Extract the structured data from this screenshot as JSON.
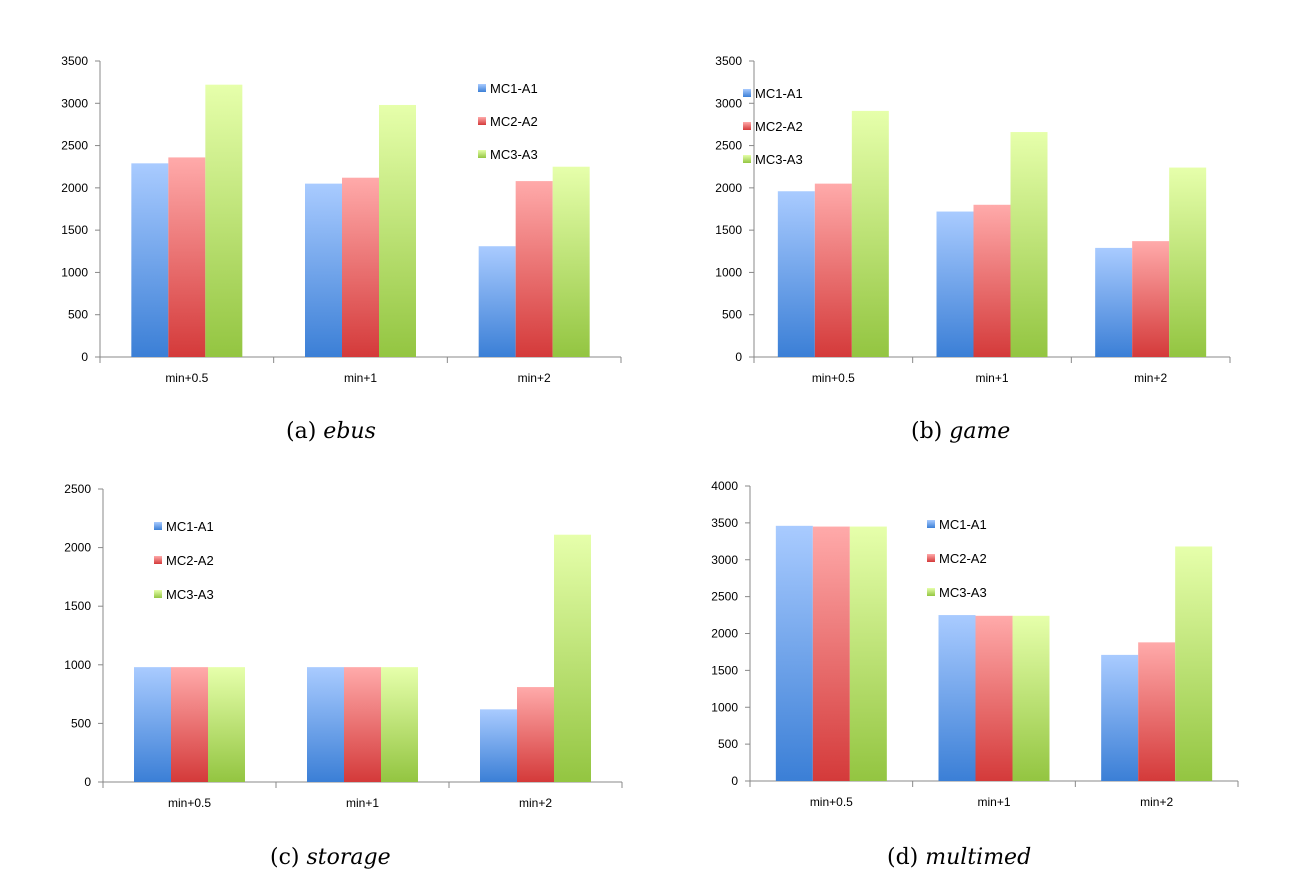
{
  "legend_items": [
    "MC1-A1",
    "MC2-A2",
    "MC3-A3"
  ],
  "colors": {
    "MC1-A1": [
      "#a9cbff",
      "#3b7fd6"
    ],
    "MC2-A2": [
      "#ffaaaa",
      "#d43a3a"
    ],
    "MC3-A3": [
      "#e6ffab",
      "#93c541"
    ]
  },
  "chart_data": [
    {
      "type": "bar",
      "caption_letter": "(a)",
      "caption_name": "ebus",
      "categories": [
        "min+0.5",
        "min+1",
        "min+2"
      ],
      "series": [
        {
          "name": "MC1-A1",
          "values": [
            2290,
            2050,
            1310
          ]
        },
        {
          "name": "MC2-A2",
          "values": [
            2360,
            2120,
            2080
          ]
        },
        {
          "name": "MC3-A3",
          "values": [
            3220,
            2980,
            2250
          ]
        }
      ],
      "ylim": [
        0,
        3500
      ],
      "yticks": [
        0,
        500,
        1000,
        1500,
        2000,
        2500,
        3000,
        3500
      ],
      "legend": "top-right",
      "grid": false
    },
    {
      "type": "bar",
      "caption_letter": "(b)",
      "caption_name": "game",
      "categories": [
        "min+0.5",
        "min+1",
        "min+2"
      ],
      "series": [
        {
          "name": "MC1-A1",
          "values": [
            1960,
            1720,
            1290
          ]
        },
        {
          "name": "MC2-A2",
          "values": [
            2050,
            1800,
            1370
          ]
        },
        {
          "name": "MC3-A3",
          "values": [
            2910,
            2660,
            2240
          ]
        }
      ],
      "ylim": [
        0,
        3500
      ],
      "yticks": [
        0,
        500,
        1000,
        1500,
        2000,
        2500,
        3000,
        3500
      ],
      "legend": "top-left",
      "grid": false
    },
    {
      "type": "bar",
      "caption_letter": "(c)",
      "caption_name": "storage",
      "categories": [
        "min+0.5",
        "min+1",
        "min+2"
      ],
      "series": [
        {
          "name": "MC1-A1",
          "values": [
            980,
            980,
            620
          ]
        },
        {
          "name": "MC2-A2",
          "values": [
            980,
            980,
            810
          ]
        },
        {
          "name": "MC3-A3",
          "values": [
            980,
            980,
            2110
          ]
        }
      ],
      "ylim": [
        0,
        2500
      ],
      "yticks": [
        0,
        500,
        1000,
        1500,
        2000,
        2500
      ],
      "legend": "top-left",
      "grid": false
    },
    {
      "type": "bar",
      "caption_letter": "(d)",
      "caption_name": "multimed",
      "categories": [
        "min+0.5",
        "min+1",
        "min+2"
      ],
      "series": [
        {
          "name": "MC1-A1",
          "values": [
            3460,
            2250,
            1710
          ]
        },
        {
          "name": "MC2-A2",
          "values": [
            3450,
            2240,
            1880
          ]
        },
        {
          "name": "MC3-A3",
          "values": [
            3450,
            2240,
            3180
          ]
        }
      ],
      "ylim": [
        0,
        4000
      ],
      "yticks": [
        0,
        500,
        1000,
        1500,
        2000,
        2500,
        3000,
        3500,
        4000
      ],
      "legend": "top-center",
      "grid": false
    }
  ]
}
